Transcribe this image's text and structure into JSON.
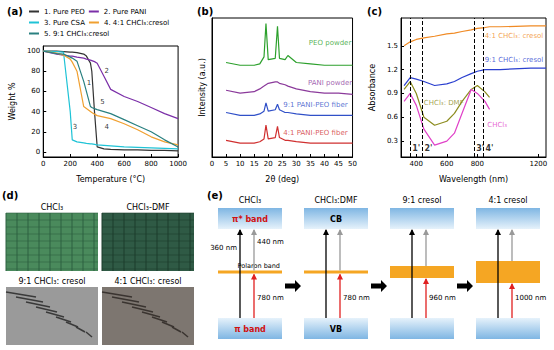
{
  "chart_data": [
    {
      "type": "line",
      "title": "(a)",
      "x_label": "Temperature (°C)",
      "y_label": "Weight %",
      "xlim": [
        0,
        1000
      ],
      "xticks": [
        0,
        200,
        400,
        600,
        800,
        1000
      ],
      "ylim": [
        -5,
        105
      ],
      "yticks": [
        0,
        20,
        40,
        60,
        80,
        100
      ],
      "grid": false,
      "legend": "top",
      "x": [
        0,
        100,
        150,
        200,
        215,
        250,
        300,
        320,
        350,
        360,
        380,
        400,
        450,
        500,
        600,
        700,
        800,
        900,
        1000
      ],
      "series": [
        {
          "name": "1. Pure PEO",
          "color": "#333333",
          "values": [
            100,
            100,
            99.5,
            99,
            99,
            98.5,
            97,
            95,
            88,
            80,
            40,
            5,
            3,
            2.5,
            2,
            2,
            1.5,
            1.5,
            1
          ]
        },
        {
          "name": "2. Pure PANI",
          "color": "#7b2fa8",
          "values": [
            100,
            97,
            96,
            95,
            95,
            94,
            93,
            92,
            91,
            90.5,
            89.5,
            88,
            75,
            62,
            55,
            50,
            44,
            38,
            33
          ]
        },
        {
          "name": "3. Pure CSA",
          "color": "#1fc3d6",
          "values": [
            100,
            99.5,
            99,
            40,
            12,
            10,
            9,
            8.5,
            8,
            8,
            7.5,
            7,
            6.5,
            6,
            5,
            4.5,
            4,
            3.5,
            3
          ]
        },
        {
          "name": "4. 4:1 CHCl₃:cresol",
          "color": "#f0a030",
          "values": [
            100,
            98,
            96,
            92,
            89,
            80,
            45,
            43,
            40,
            39,
            37.5,
            36,
            34.5,
            33,
            28,
            22,
            15,
            10,
            7
          ]
        },
        {
          "name": "5. 9:1 CHCl₃:cresol",
          "color": "#2a8080",
          "values": [
            100,
            97.5,
            97,
            94,
            93,
            90,
            70,
            60,
            45,
            44,
            43,
            42,
            40,
            38,
            32,
            26,
            20,
            12,
            5
          ]
        }
      ],
      "annotations": [
        {
          "text": "1",
          "x": 340,
          "y": 68
        },
        {
          "text": "2",
          "x": 470,
          "y": 80
        },
        {
          "text": "3",
          "x": 235,
          "y": 25
        },
        {
          "text": "4",
          "x": 470,
          "y": 25
        },
        {
          "text": "5",
          "x": 440,
          "y": 50
        }
      ]
    },
    {
      "type": "line",
      "title": "(b)",
      "x_label": "2θ (deg)",
      "y_label": "Intensity (a.u.)",
      "xlim": [
        0,
        50
      ],
      "xticks": [
        0,
        5,
        10,
        15,
        20,
        25,
        30,
        35,
        40,
        45,
        50
      ],
      "ylim": [
        0,
        10
      ],
      "grid": false,
      "tick_labels": "x",
      "x": [
        5,
        10,
        15,
        17,
        18.5,
        19.2,
        20,
        22.5,
        23.3,
        24,
        26,
        27,
        30,
        35,
        40,
        45,
        50
      ],
      "series": [
        {
          "name": "PEO powder",
          "color": "#2ca02c",
          "values": [
            6.8,
            6.6,
            6.6,
            6.7,
            7.2,
            9.6,
            7.0,
            7.1,
            9.4,
            7.1,
            7.0,
            7.3,
            6.8,
            6.7,
            6.6,
            6.6,
            6.6
          ]
        },
        {
          "name": "PANI powder",
          "color": "#8b3a9b",
          "values": [
            4.8,
            4.6,
            4.7,
            4.9,
            5.1,
            5.2,
            5.3,
            5.4,
            5.4,
            5.3,
            5.2,
            5.1,
            4.9,
            4.7,
            4.6,
            4.6,
            4.5
          ]
        },
        {
          "name": "9:1 PANI-PEO fiber",
          "color": "#3050c8",
          "values": [
            3.2,
            3.0,
            3.0,
            3.1,
            3.3,
            3.9,
            3.3,
            3.4,
            3.8,
            3.4,
            3.2,
            3.2,
            3.1,
            3.0,
            3.0,
            3.0,
            3.0
          ]
        },
        {
          "name": "4:1 PANI-PEO fiber",
          "color": "#d03030",
          "values": [
            1.2,
            1.0,
            1.0,
            1.1,
            1.3,
            2.3,
            1.3,
            1.4,
            2.2,
            1.4,
            1.2,
            1.2,
            1.1,
            1.0,
            1.0,
            1.0,
            1.0
          ]
        }
      ],
      "annotations": [
        {
          "text": "PEO powder",
          "x": 42,
          "y": 8.2,
          "color": "#2ca02c"
        },
        {
          "text": "PANI powder",
          "x": 42,
          "y": 5.3,
          "color": "#8b3a9b"
        },
        {
          "text": "9:1 PANI-PEO fiber",
          "x": 36.8,
          "y": 3.75,
          "color": "#3050c8"
        },
        {
          "text": "4:1 PANI-PEO fiber",
          "x": 36.8,
          "y": 1.75,
          "color": "#d03030"
        }
      ]
    },
    {
      "type": "line",
      "title": "(c)",
      "x_label": "Wavelength (nm)",
      "y_label": "Absorbance",
      "xlim": [
        300,
        1250
      ],
      "xticks": [
        400,
        600,
        800,
        1200
      ],
      "ylim": [
        0.1,
        1.85
      ],
      "yticks": [
        0.3,
        0.6,
        0.9,
        1.2,
        1.5
      ],
      "grid": false,
      "x": [
        320,
        360,
        400,
        450,
        520,
        600,
        650,
        700,
        760,
        800,
        850,
        880,
        950,
        1150,
        1200,
        1250
      ],
      "series": [
        {
          "name": "4:1 CHCl₃: cresol",
          "color": "#f08a24",
          "values": [
            1.5,
            1.55,
            1.58,
            1.6,
            1.62,
            1.65,
            1.66,
            1.68,
            1.7,
            1.72,
            1.73,
            1.74,
            1.74,
            1.75,
            1.75,
            1.75
          ]
        },
        {
          "name": "9:1 CHCl₃: cresol",
          "color": "#2a3fcf",
          "values": [
            1.0,
            1.1,
            1.08,
            1.05,
            1.0,
            1.02,
            1.05,
            1.1,
            1.15,
            1.18,
            1.2,
            1.2,
            1.2,
            1.22,
            1.22,
            1.22
          ]
        },
        {
          "name": "CHCl₃: DMF",
          "color": "#8c8c1e",
          "values": [
            0.95,
            1.05,
            0.9,
            0.6,
            0.5,
            0.55,
            0.65,
            0.8,
            0.95,
            1.0,
            0.92,
            0.85,
            null,
            null,
            null,
            null
          ]
        },
        {
          "name": "CHCl₃",
          "color": "#e040c8",
          "values": [
            0.8,
            0.9,
            0.75,
            0.45,
            0.25,
            0.3,
            0.4,
            0.65,
            0.95,
            0.9,
            0.8,
            0.7,
            null,
            null,
            null,
            null
          ]
        }
      ],
      "annotations": [
        {
          "text": "4:1 CHCl₃: cresol",
          "x": 1040,
          "y": 1.62,
          "color": "#f08a24"
        },
        {
          "text": "9:1 CHCl₃: cresol",
          "x": 1040,
          "y": 1.32,
          "color": "#2a3fcf"
        },
        {
          "text": "CHCl₃: DMF",
          "x": 580,
          "y": 0.78,
          "color": "#8c8c1e"
        },
        {
          "text": "CHCl₃",
          "x": 930,
          "y": 0.5,
          "color": "#e040c8"
        }
      ],
      "reference_lines": [
        {
          "x": 360,
          "label": "1'"
        },
        {
          "x": 440,
          "label": "2'"
        },
        {
          "x": 780,
          "label": "3'"
        },
        {
          "x": 840,
          "label": "4'"
        }
      ]
    }
  ],
  "photos": {
    "title": "(d)",
    "captions": [
      "CHCl₃",
      "CHCl₃-DMF",
      "9:1 CHCl₃: cresol",
      "4:1 CHCl₃: cresol"
    ]
  },
  "band_diagram": {
    "title": "(e)",
    "columns": [
      {
        "label": "CHCl₃",
        "upper_band": "π* band",
        "lower_band": "π band",
        "middle_band": "Polaron band",
        "upper_gap_label": "440 nm",
        "full_gap_label": "360 nm",
        "lower_gap_label": "780 nm"
      },
      {
        "label": "CHCl₃:DMF",
        "upper_band": "CB",
        "lower_band": "VB",
        "lower_gap_label": "780 nm"
      },
      {
        "label": "9:1 cresol",
        "lower_gap_label": "960 nm"
      },
      {
        "label": "4:1 cresol",
        "lower_gap_label": "1000 nm"
      }
    ]
  }
}
